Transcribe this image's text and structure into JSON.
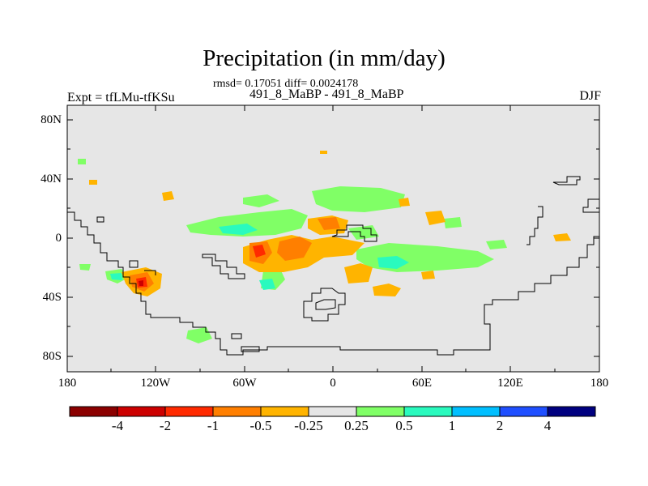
{
  "title": "Precipitation (in mm/day)",
  "stats_line": "rmsd= 0.17051 diff= 0.0024178",
  "experiments": "491_8_MaBP - 491_8_MaBP",
  "expt_label": "Expt = tfLMu-tfKSu",
  "season": "DJF",
  "map": {
    "projection": "cylindrical-equidistant",
    "lon_range": [
      -180,
      180
    ],
    "lat_range": [
      -90,
      90
    ],
    "background_color": "#e6e6e6",
    "lat_ticks": [
      "80N",
      "40N",
      "0",
      "40S",
      "80S"
    ],
    "lon_ticks": [
      "180",
      "120W",
      "60W",
      "0",
      "60E",
      "120E",
      "180"
    ]
  },
  "colorbar": {
    "labels": [
      "-4",
      "-2",
      "-1",
      "-0.5",
      "-0.25",
      "0.25",
      "0.5",
      "1",
      "2",
      "4"
    ],
    "colors": [
      "#8b0000",
      "#cc0000",
      "#ff2a00",
      "#ff7f00",
      "#ffb400",
      "#e6e6e6",
      "#80ff66",
      "#2afabe",
      "#00bfff",
      "#1f4fff",
      "#000080"
    ]
  }
}
